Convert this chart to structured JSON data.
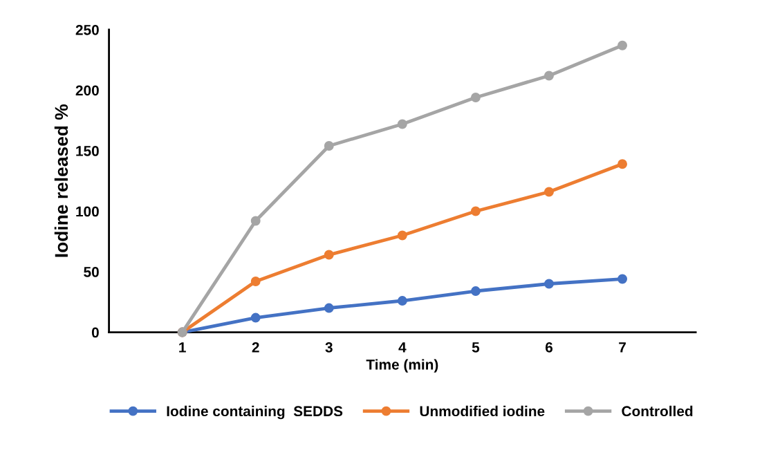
{
  "chart_data": {
    "type": "line",
    "xlabel": "Time (min)",
    "ylabel": "Iodine released %",
    "categories": [
      "1",
      "2",
      "3",
      "4",
      "5",
      "6",
      "7"
    ],
    "series": [
      {
        "name": "Iodine containing  SEDDS",
        "color": "#4472c4",
        "values": [
          0,
          12,
          20,
          26,
          34,
          40,
          44
        ]
      },
      {
        "name": "Unmodified iodine",
        "color": "#ed7d31",
        "values": [
          0,
          42,
          64,
          80,
          100,
          116,
          139
        ]
      },
      {
        "name": "Controlled",
        "color": "#a5a5a5",
        "values": [
          0,
          92,
          154,
          172,
          194,
          212,
          237
        ]
      }
    ],
    "ylim": [
      0,
      250
    ],
    "yticks": [
      0,
      50,
      100,
      150,
      200,
      250
    ],
    "grid": false,
    "legend": "bottom",
    "marker": "circle",
    "line_style": "solid"
  }
}
